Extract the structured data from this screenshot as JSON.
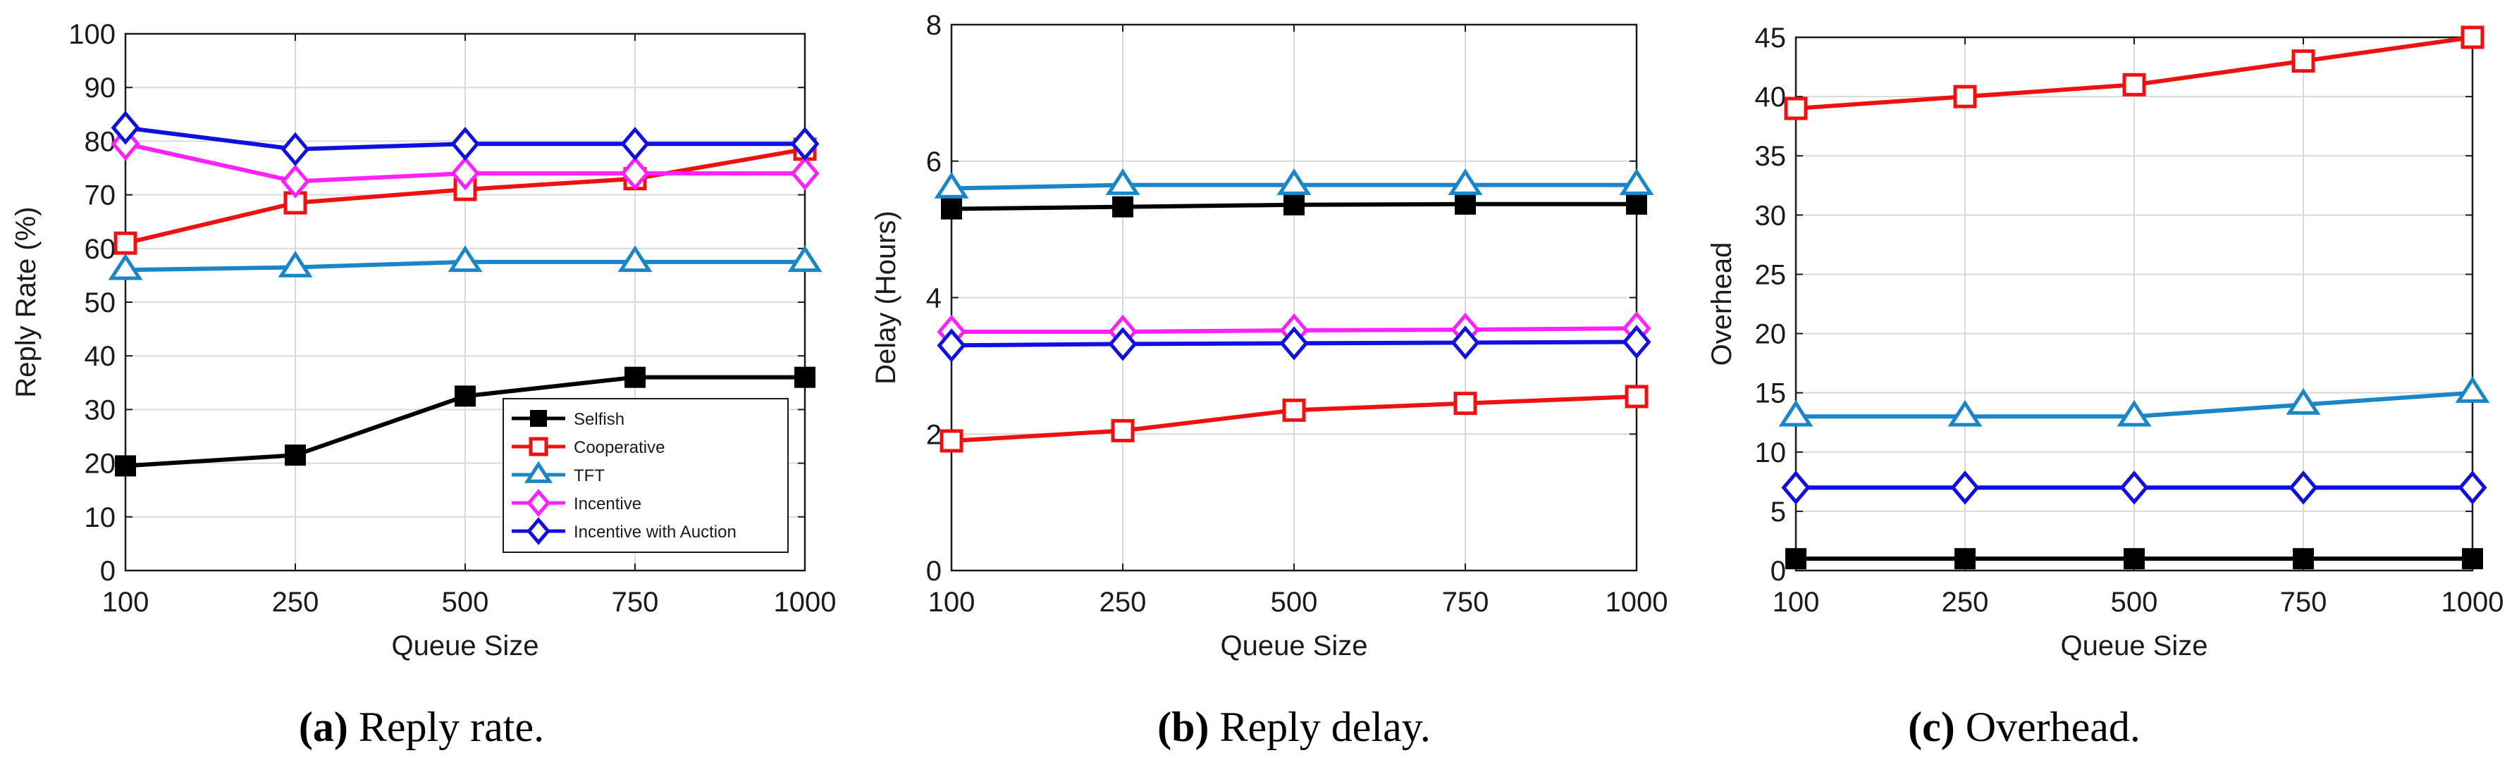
{
  "colors": {
    "Selfish": "#000000",
    "Cooperative": "#ee1111",
    "TFT": "#1a86c8",
    "Incentive": "#ff22ff",
    "Incentive with Auction": "#1010e0",
    "grid": "#d9d9d9",
    "axis": "#1a1a1a"
  },
  "markers": {
    "Selfish": "filled-square",
    "Cooperative": "open-square",
    "TFT": "open-triangle",
    "Incentive": "open-diamond",
    "Incentive with Auction": "open-diamond"
  },
  "chart_data": [
    {
      "type": "line",
      "xlabel": "Queue Size",
      "ylabel": "Reply Rate (%)",
      "caption_tag": "(a)",
      "caption_text": "Reply rate.",
      "categories": [
        "100",
        "250",
        "500",
        "750",
        "1000"
      ],
      "ylim": [
        0,
        100
      ],
      "yticks": [
        0,
        10,
        20,
        30,
        40,
        50,
        60,
        70,
        80,
        90,
        100
      ],
      "grid": true,
      "legend": {
        "placement": "bottom-right",
        "entries": [
          "Selfish",
          "Cooperative",
          "TFT",
          "Incentive",
          "Incentive with Auction"
        ]
      },
      "series": [
        {
          "name": "Selfish",
          "values": [
            19.5,
            21.5,
            32.5,
            36,
            36
          ]
        },
        {
          "name": "Cooperative",
          "values": [
            61,
            68.5,
            71,
            73,
            78.5
          ]
        },
        {
          "name": "TFT",
          "values": [
            56,
            56.5,
            57.5,
            57.5,
            57.5
          ]
        },
        {
          "name": "Incentive",
          "values": [
            79.5,
            72.5,
            74,
            74,
            74
          ]
        },
        {
          "name": "Incentive with Auction",
          "values": [
            82.5,
            78.5,
            79.5,
            79.5,
            79.5
          ]
        }
      ]
    },
    {
      "type": "line",
      "xlabel": "Queue Size",
      "ylabel": "Delay (Hours)",
      "caption_tag": "(b)",
      "caption_text": "Reply delay.",
      "categories": [
        "100",
        "250",
        "500",
        "750",
        "1000"
      ],
      "ylim": [
        0,
        8
      ],
      "yticks": [
        0,
        2,
        4,
        6,
        8
      ],
      "grid": true,
      "series": [
        {
          "name": "Selfish",
          "values": [
            5.3,
            5.33,
            5.36,
            5.37,
            5.37
          ]
        },
        {
          "name": "Cooperative",
          "values": [
            1.9,
            2.05,
            2.35,
            2.45,
            2.55
          ]
        },
        {
          "name": "TFT",
          "values": [
            5.6,
            5.65,
            5.65,
            5.65,
            5.65
          ]
        },
        {
          "name": "Incentive",
          "values": [
            3.5,
            3.5,
            3.52,
            3.53,
            3.55
          ]
        },
        {
          "name": "Incentive with Auction",
          "values": [
            3.3,
            3.32,
            3.33,
            3.34,
            3.35
          ]
        }
      ]
    },
    {
      "type": "line",
      "xlabel": "Queue Size",
      "ylabel": "Overhead",
      "caption_tag": "(c)",
      "caption_text": "Overhead.",
      "categories": [
        "100",
        "250",
        "500",
        "750",
        "1000"
      ],
      "ylim": [
        0,
        45
      ],
      "yticks": [
        0,
        5,
        10,
        15,
        20,
        25,
        30,
        35,
        40,
        45
      ],
      "grid": true,
      "series": [
        {
          "name": "Selfish",
          "values": [
            1,
            1,
            1,
            1,
            1
          ]
        },
        {
          "name": "Cooperative",
          "values": [
            39,
            40,
            41,
            43,
            45
          ]
        },
        {
          "name": "TFT",
          "values": [
            13,
            13,
            13,
            14,
            15
          ]
        },
        {
          "name": "Incentive",
          "values": [
            7,
            7,
            7,
            7,
            7
          ]
        },
        {
          "name": "Incentive with Auction",
          "values": [
            7,
            7,
            7,
            7,
            7
          ]
        }
      ]
    }
  ]
}
